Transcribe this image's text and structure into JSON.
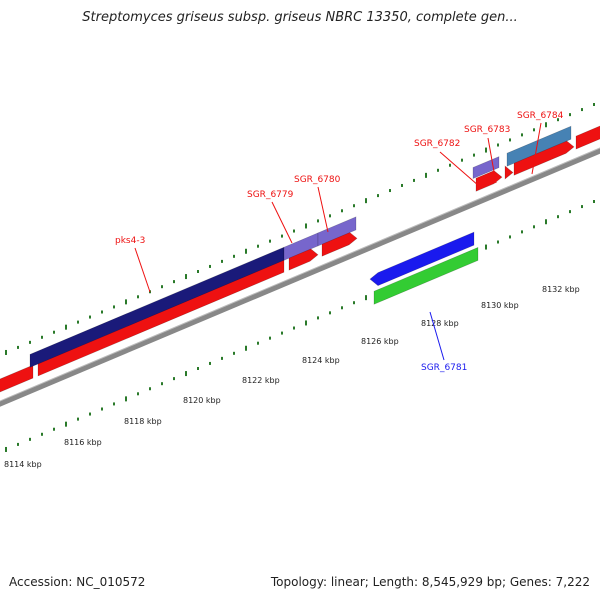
{
  "title": "Streptomyces griseus subsp. griseus NBRC 13350, complete gen...",
  "footer": {
    "accession": "Accession: NC_010572",
    "topology": "Topology: linear; Length: 8,545,929 bp; Genes: 7,222"
  },
  "colors": {
    "red": "#ee1111",
    "navy": "#1a1a7a",
    "purple": "#7766cc",
    "blue": "#1a1aee",
    "green": "#33cc33",
    "steel": "#4682b4",
    "tick": "#2a7a2a",
    "backbone": "#888888"
  },
  "ruler": {
    "labels": [
      "8114 kbp",
      "8116 kbp",
      "8118 kbp",
      "8120 kbp",
      "8122 kbp",
      "8124 kbp",
      "8126 kbp",
      "8128 kbp",
      "8130 kbp",
      "8132 kbp"
    ]
  },
  "genes": [
    {
      "label": "pks4-3",
      "color": "red"
    },
    {
      "label": "SGR_6779",
      "color": "red"
    },
    {
      "label": "SGR_6780",
      "color": "red"
    },
    {
      "label": "SGR_6781",
      "color": "blue"
    },
    {
      "label": "SGR_6782",
      "color": "red"
    },
    {
      "label": "SGR_6783",
      "color": "red"
    },
    {
      "label": "SGR_6784",
      "color": "red"
    }
  ]
}
